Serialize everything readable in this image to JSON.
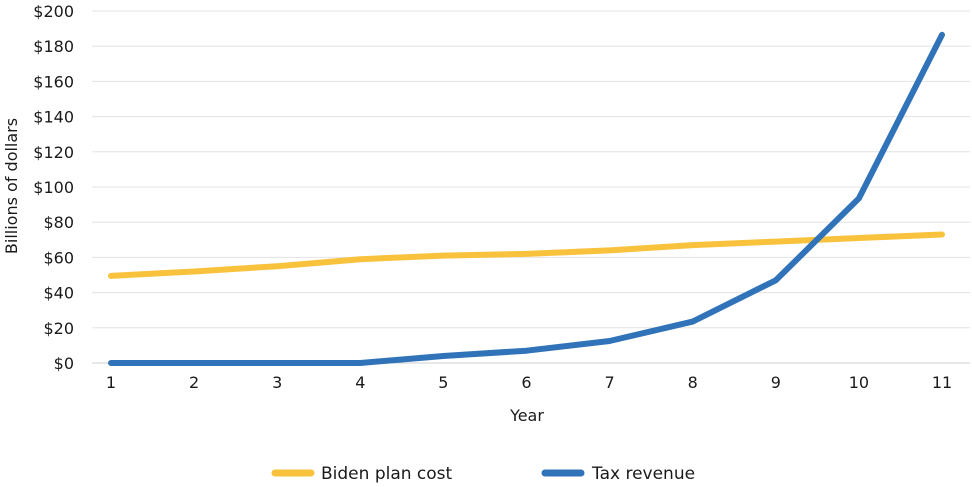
{
  "chart_data": {
    "type": "line",
    "title": "",
    "xlabel": "Year",
    "ylabel": "Billions of dollars",
    "x": [
      1,
      2,
      3,
      4,
      5,
      6,
      7,
      8,
      9,
      10,
      11
    ],
    "xticks": [
      "1",
      "2",
      "3",
      "4",
      "5",
      "6",
      "7",
      "8",
      "9",
      "10",
      "11"
    ],
    "ylim": [
      0,
      200
    ],
    "yticks": [
      0,
      20,
      40,
      60,
      80,
      100,
      120,
      140,
      160,
      180,
      200
    ],
    "ytick_labels": [
      "$0",
      "$20",
      "$40",
      "$60",
      "$80",
      "$100",
      "$120",
      "$140",
      "$160",
      "$180",
      "$200"
    ],
    "grid": "horizontal",
    "legend_position": "bottom",
    "series": [
      {
        "name": "Biden plan cost",
        "color": "#f9c23c",
        "values": [
          49.5,
          52,
          55,
          59,
          61,
          62,
          64,
          67,
          69,
          71,
          73
        ]
      },
      {
        "name": "Tax revenue",
        "color": "#3173b8",
        "values": [
          0,
          0,
          0,
          0,
          4,
          7,
          12.5,
          23.5,
          47,
          93.5,
          186.5
        ]
      }
    ]
  }
}
